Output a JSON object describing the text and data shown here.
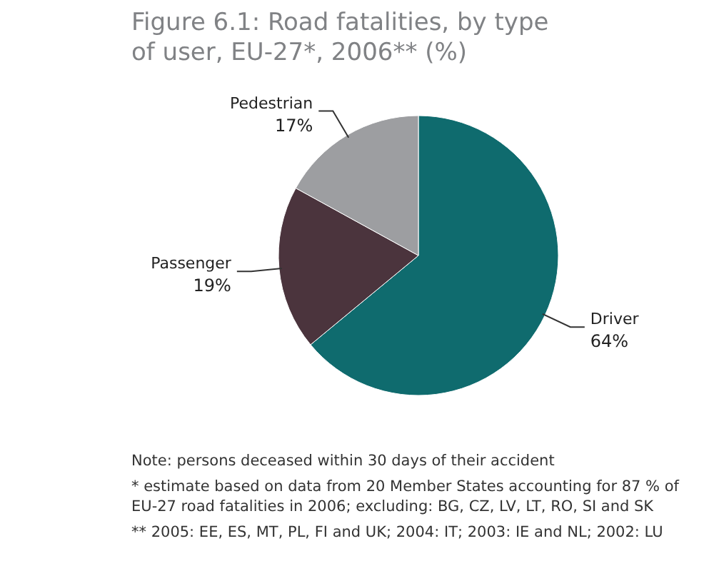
{
  "chart_data": {
    "type": "pie",
    "title": "Figure 6.1: Road fatalities, by type of user, EU-27*, 2006** (%)",
    "categories": [
      "Driver",
      "Passenger",
      "Pedestrian"
    ],
    "values": [
      64,
      19,
      17
    ],
    "value_labels": [
      "64%",
      "19%",
      "17%"
    ],
    "colors": [
      "#0f6b6e",
      "#4b343d",
      "#9d9ea1"
    ],
    "annotations": [
      "Note: persons deceased within 30 days of their accident",
      "* estimate based on data from 20 Member States accounting for 87 % of EU-27 road fatalities in 2006; excluding: BG, CZ, LV, LT, RO, SI and SK",
      "** 2005: EE, ES, MT, PL, FI and UK; 2004: IT; 2003: IE and NL; 2002: LU"
    ]
  }
}
